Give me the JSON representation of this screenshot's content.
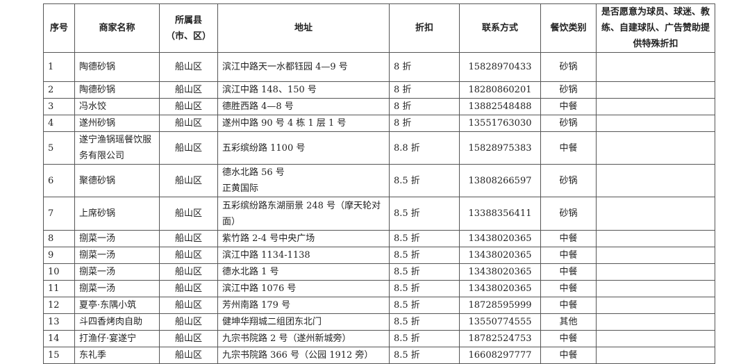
{
  "table": {
    "headers": [
      "序号",
      "商家名称",
      "所属县（市、区）",
      "地址",
      "折扣",
      "联系方式",
      "餐饮类别",
      "是否愿意为球员、球迷、教练、自建球队、广告赞助提供特殊折扣"
    ],
    "rows": [
      {
        "no": "1",
        "name": "陶德砂锅",
        "district": "船山区",
        "address": "滨江中路天一水都钰园 4—9 号",
        "discount": "8 折",
        "phone": "15828970433",
        "category": "砂锅",
        "special": ""
      },
      {
        "no": "2",
        "name": "陶德砂锅",
        "district": "船山区",
        "address": "滨江中路 148、150 号",
        "discount": "8 折",
        "phone": "18280860201",
        "category": "砂锅",
        "special": ""
      },
      {
        "no": "3",
        "name": "冯水饺",
        "district": "船山区",
        "address": "德胜西路 4—8 号",
        "discount": "8 折",
        "phone": "13882548488",
        "category": "中餐",
        "special": ""
      },
      {
        "no": "4",
        "name": "遂州砂锅",
        "district": "船山区",
        "address": "遂州中路 90 号 4 栋 1 层 1 号",
        "discount": "8 折",
        "phone": "13551763030",
        "category": "砂锅",
        "special": ""
      },
      {
        "no": "5",
        "name": "遂宁渔锅瑶餐饮服务有限公司",
        "district": "船山区",
        "address": "五彩缤纷路 1100 号",
        "discount": "8.8 折",
        "phone": "15828975383",
        "category": "中餐",
        "special": ""
      },
      {
        "no": "6",
        "name": "聚德砂锅",
        "district": "船山区",
        "address": "德水北路 56 号\n正黄国际",
        "discount": "8.5 折",
        "phone": "13808266597",
        "category": "砂锅",
        "special": ""
      },
      {
        "no": "7",
        "name": "上席砂锅",
        "district": "船山区",
        "address": "五彩缤纷路东湖丽景 248 号（摩天轮对面）",
        "discount": "8.5 折",
        "phone": "13388356411",
        "category": "砂锅",
        "special": ""
      },
      {
        "no": "8",
        "name": "捌菜一汤",
        "district": "船山区",
        "address": "紫竹路 2-4 号中央广场",
        "discount": "8.5 折",
        "phone": "13438020365",
        "category": "中餐",
        "special": ""
      },
      {
        "no": "9",
        "name": "捌菜一汤",
        "district": "船山区",
        "address": "滨江中路 1134-1138",
        "discount": "8.5 折",
        "phone": "13438020365",
        "category": "中餐",
        "special": ""
      },
      {
        "no": "10",
        "name": "捌菜一汤",
        "district": "船山区",
        "address": "德水北路 1 号",
        "discount": "8.5 折",
        "phone": "13438020365",
        "category": "中餐",
        "special": ""
      },
      {
        "no": "11",
        "name": "捌菜一汤",
        "district": "船山区",
        "address": "滨江中路 1076 号",
        "discount": "8.5 折",
        "phone": "13438020365",
        "category": "中餐",
        "special": ""
      },
      {
        "no": "12",
        "name": "夏亭·东隅小筑",
        "district": "船山区",
        "address": "芳州南路 179 号",
        "discount": "8.5 折",
        "phone": "18728595999",
        "category": "中餐",
        "special": ""
      },
      {
        "no": "13",
        "name": "斗四香烤肉自助",
        "district": "船山区",
        "address": "健坤华翔城二组团东北门",
        "discount": "8.5 折",
        "phone": "13550774555",
        "category": "其他",
        "special": ""
      },
      {
        "no": "14",
        "name": "打渔仔·宴遂宁",
        "district": "船山区",
        "address": "九宗书院路 2 号（遂州新城旁）",
        "discount": "8.5 折",
        "phone": "18782524753",
        "category": "中餐",
        "special": ""
      },
      {
        "no": "15",
        "name": "东礼季",
        "district": "船山区",
        "address": "九宗书院路 366 号（公园 1912 旁）",
        "discount": "8.5 折",
        "phone": "16608297777",
        "category": "中餐",
        "special": ""
      }
    ]
  }
}
